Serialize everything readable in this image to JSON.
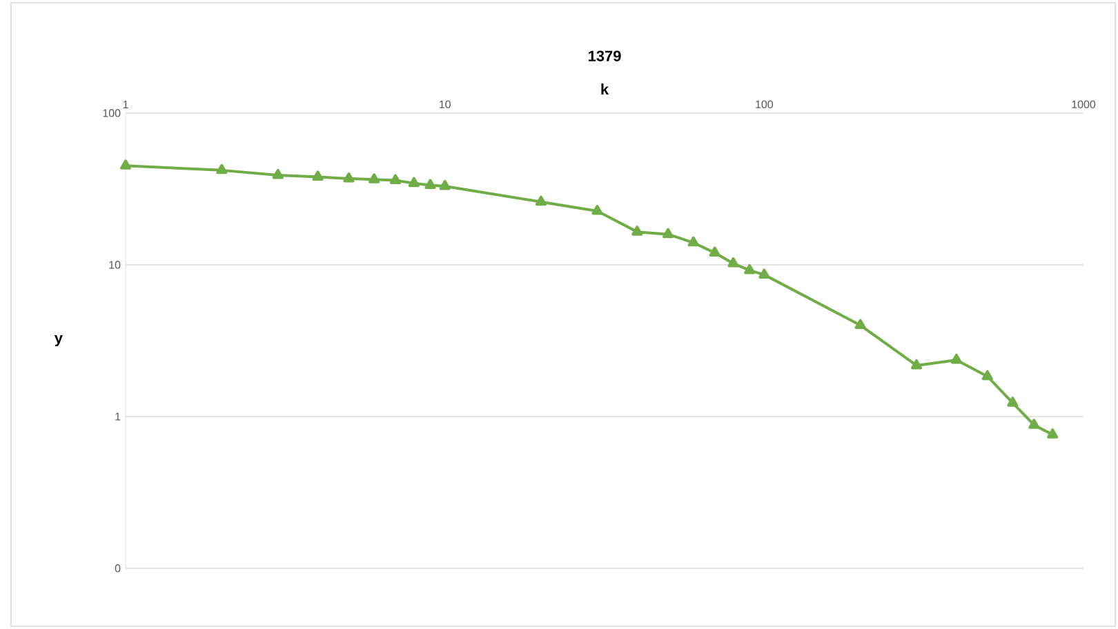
{
  "chart_data": {
    "type": "line",
    "title": "**1379**",
    "xlabel": "**k**",
    "ylabel": "**y**",
    "x": [
      1,
      2,
      3,
      4,
      5,
      6,
      7,
      8,
      9,
      10,
      20,
      30,
      40,
      50,
      60,
      70,
      80,
      90,
      100,
      200,
      300,
      400,
      500,
      600,
      700,
      800
    ],
    "series": [
      {
        "color": "#70ad47",
        "values": [
          45,
          42,
          39,
          38,
          37,
          36.5,
          36,
          34.5,
          33.5,
          33,
          26,
          22.6,
          16.5,
          15.9,
          14,
          12,
          10.2,
          9.2,
          8.6,
          4.0,
          2.17,
          2.36,
          1.84,
          1.23,
          0.88,
          0.76
        ]
      }
    ],
    "log": "xy",
    "xlim": [
      1,
      1000
    ],
    "ylim": [
      0.1,
      100
    ],
    "xticks": [
      1,
      10,
      100,
      1000
    ],
    "yticks": [
      {
        "value": 0.1,
        "label": "0"
      },
      1,
      10,
      100
    ],
    "grid": "y",
    "marker": "triangle",
    "line_style": "solid"
  }
}
